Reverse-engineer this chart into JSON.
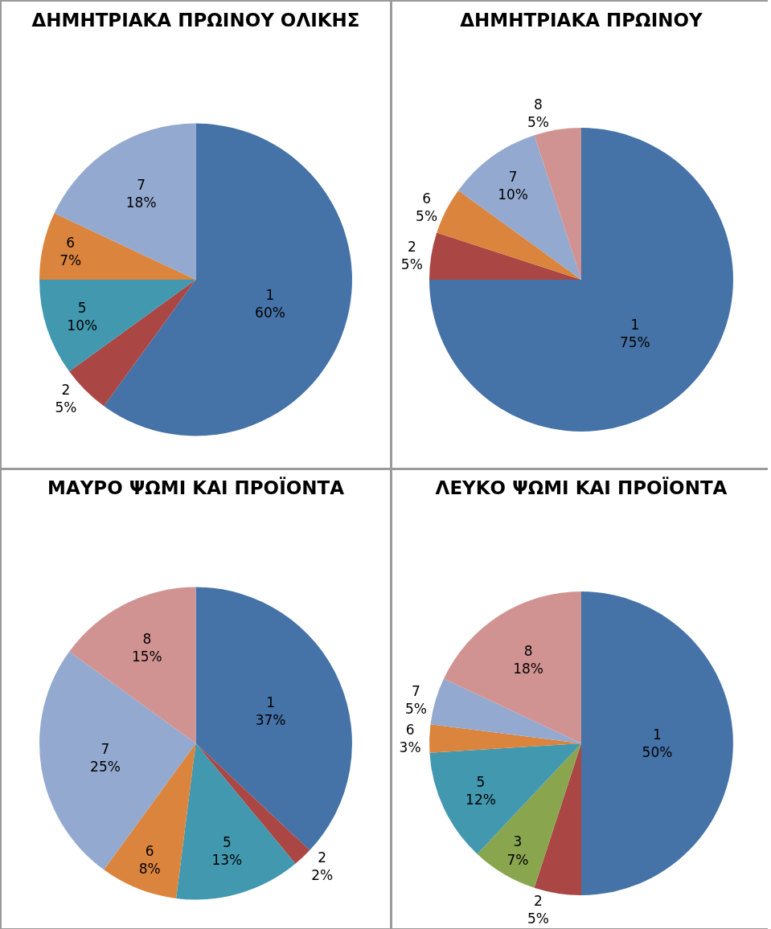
{
  "chart_data": [
    {
      "type": "pie",
      "title": "ΔΗΜΗΤΡΙΑΚΑ ΠΡΩΙΝΟΥ ΟΛΙΚΗΣ",
      "categories": [
        "1",
        "2",
        "5",
        "6",
        "7"
      ],
      "values": [
        60,
        5,
        10,
        7,
        18
      ],
      "value_labels": [
        "60%",
        "5%",
        "10%",
        "7%",
        "18%"
      ],
      "colors": [
        "#4572a7",
        "#aa4643",
        "#4198af",
        "#db843d",
        "#93a9cf"
      ],
      "legend": false
    },
    {
      "type": "pie",
      "title": "ΔΗΜΗΤΡΙΑΚΑ ΠΡΩΙΝΟΥ",
      "categories": [
        "1",
        "2",
        "6",
        "7",
        "8"
      ],
      "values": [
        75,
        5,
        5,
        10,
        5
      ],
      "value_labels": [
        "75%",
        "5%",
        "5%",
        "10%",
        "5%"
      ],
      "colors": [
        "#4572a7",
        "#aa4643",
        "#db843d",
        "#93a9cf",
        "#d19392"
      ],
      "legend": false
    },
    {
      "type": "pie",
      "title": "ΜΑΥΡΟ ΨΩΜΙ ΚΑΙ ΠΡΟΪΟΝΤΑ",
      "categories": [
        "1",
        "2",
        "5",
        "6",
        "7",
        "8"
      ],
      "values": [
        37,
        2,
        13,
        8,
        25,
        15
      ],
      "value_labels": [
        "37%",
        "2%",
        "13%",
        "8%",
        "25%",
        "15%"
      ],
      "colors": [
        "#4572a7",
        "#aa4643",
        "#4198af",
        "#db843d",
        "#93a9cf",
        "#d19392"
      ],
      "legend": false
    },
    {
      "type": "pie",
      "title": "ΛΕΥΚΟ ΨΩΜΙ ΚΑΙ ΠΡΟΪΟΝΤΑ",
      "categories": [
        "1",
        "2",
        "3",
        "5",
        "6",
        "7",
        "8"
      ],
      "values": [
        50,
        5,
        7,
        12,
        3,
        5,
        18
      ],
      "value_labels": [
        "50%",
        "5%",
        "7%",
        "12%",
        "3%",
        "5%",
        "18%"
      ],
      "colors": [
        "#4572a7",
        "#aa4643",
        "#89a54e",
        "#4198af",
        "#db843d",
        "#93a9cf",
        "#d19392"
      ],
      "legend": false
    }
  ]
}
